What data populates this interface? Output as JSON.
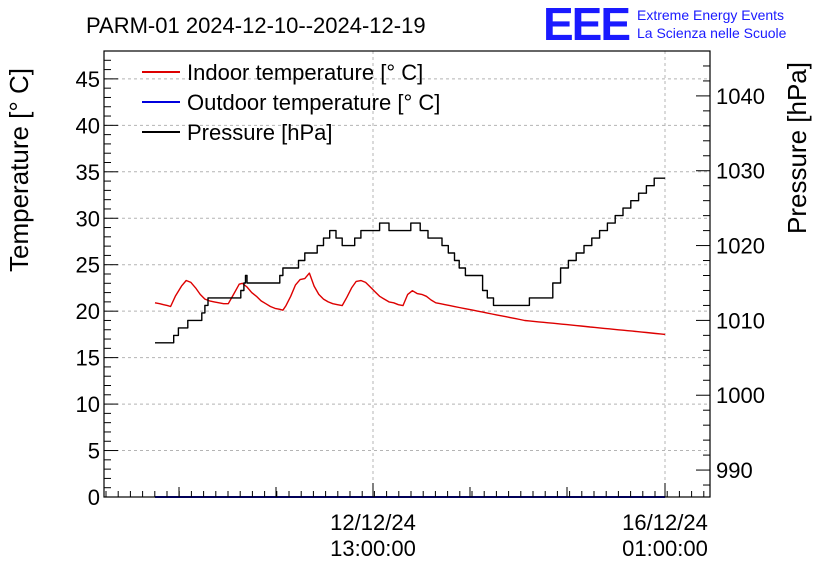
{
  "chart_data": {
    "type": "line",
    "title": "PARM-01 2024-12-10--2024-12-19",
    "ylabel": "Temperature [° C]",
    "y2label": "Pressure [hPa]",
    "ylim": [
      0,
      48
    ],
    "y2lim": [
      986.4,
      1046
    ],
    "yticks": [
      "0",
      "5",
      "10",
      "15",
      "20",
      "25",
      "30",
      "35",
      "40",
      "45"
    ],
    "y2ticks": [
      "990",
      "1000",
      "1010",
      "1020",
      "1030",
      "1040"
    ],
    "x_major_labels": [
      {
        "date": "12/12/24",
        "time": "13:00:00"
      },
      {
        "date": "16/12/24",
        "time": "01:00:00"
      }
    ],
    "legend": [
      {
        "label": "Indoor temperature [° C]",
        "color": "#dd0000"
      },
      {
        "label": "Outdoor temperature [° C]",
        "color": "#0000dd"
      },
      {
        "label": "Pressure [hPa]",
        "color": "#000000"
      }
    ],
    "series": [
      {
        "name": "Indoor temperature [° C]",
        "axis": "left",
        "color": "#dd0000",
        "x": [
          0,
          0.3,
          0.55,
          0.8,
          1.0,
          1.3,
          1.7,
          2.0,
          2.3,
          2.6,
          2.9,
          3.2,
          3.5,
          3.8,
          4.1,
          4.4,
          4.7,
          5.0,
          5.2,
          5.4,
          5.6,
          5.9,
          6.2,
          6.5,
          6.8,
          7.1,
          7.4,
          7.7,
          8.0,
          8.2,
          8.4,
          8.7,
          9.0,
          9.3,
          9.6,
          9.9,
          10.2,
          10.5,
          10.8,
          11.1,
          11.4,
          11.7,
          12.0,
          12.3,
          12.6,
          12.9,
          13.2,
          13.5,
          13.8,
          14.1,
          14.4,
          14.7,
          15.0,
          15.3,
          15.6,
          15.9,
          16.2,
          16.5,
          16.8,
          17.1,
          17.4,
          17.7,
          18.0,
          18.3,
          18.6,
          18.9,
          19.2,
          19.5,
          19.8,
          20.1,
          20.4,
          20.7,
          21.0,
          21.3,
          21.6,
          21.9,
          22.2,
          22.5,
          22.8,
          23.1,
          23.4,
          23.7,
          24.0,
          24.3,
          24.6,
          24.9,
          25.2,
          25.5,
          25.8,
          26.1,
          26.4,
          26.7,
          27.0,
          27.3,
          27.6,
          27.9,
          28.2,
          28.5,
          28.8,
          29.1,
          29.4,
          29.7,
          30.0,
          30.3,
          30.6,
          30.9,
          31.2,
          31.5,
          31.8,
          32.1,
          32.4,
          32.7
        ],
        "values": [
          20.9,
          20.8,
          20.7,
          20.6,
          20.5,
          21.6,
          22.7,
          23.3,
          23.1,
          22.5,
          21.8,
          21.3,
          21.1,
          21.0,
          20.9,
          20.8,
          20.8,
          21.7,
          22.3,
          22.9,
          23.0,
          22.6,
          22.0,
          21.6,
          21.1,
          20.8,
          20.5,
          20.3,
          20.2,
          20.1,
          20.6,
          21.6,
          22.8,
          23.4,
          23.5,
          24.1,
          22.7,
          21.8,
          21.3,
          21.0,
          20.8,
          20.7,
          20.6,
          21.5,
          22.5,
          23.2,
          23.3,
          23.1,
          22.6,
          22.1,
          21.6,
          21.3,
          21.0,
          20.9,
          20.7,
          20.6,
          21.8,
          22.2,
          21.9,
          21.8,
          21.6,
          21.2,
          20.9,
          20.8,
          20.7,
          20.6,
          20.5,
          20.4,
          20.3,
          20.2,
          20.1,
          20.0,
          19.9,
          19.8,
          19.7,
          19.6,
          19.5,
          19.4,
          19.3,
          19.2,
          19.1,
          19.0,
          18.95,
          18.9,
          18.85,
          18.8,
          18.75,
          18.7,
          18.65,
          18.6,
          18.55,
          18.5,
          18.45,
          18.4,
          18.35,
          18.3,
          18.25,
          18.2,
          18.15,
          18.1,
          18.05,
          18.0,
          17.95,
          17.9,
          17.85,
          17.8,
          17.75,
          17.7,
          17.65,
          17.6,
          17.55,
          17.5
        ]
      },
      {
        "name": "Outdoor temperature [° C]",
        "axis": "left",
        "color": "#0000dd",
        "x": [
          0,
          32.7
        ],
        "values": [
          0,
          0
        ]
      },
      {
        "name": "Pressure [hPa]",
        "axis": "right",
        "color": "#000000",
        "x": [
          0,
          1.0,
          1.2,
          1.5,
          1.8,
          2.1,
          2.4,
          3.0,
          3.2,
          3.4,
          3.6,
          5.5,
          5.7,
          5.8,
          5.9,
          6.0,
          6.2,
          8.0,
          8.2,
          9.0,
          9.2,
          9.6,
          10.0,
          10.4,
          10.8,
          11.2,
          11.6,
          12.0,
          12.4,
          12.8,
          13.2,
          13.6,
          14.0,
          14.4,
          15.0,
          15.4,
          15.8,
          16.4,
          17.0,
          17.5,
          18.0,
          18.4,
          18.8,
          19.2,
          19.5,
          19.9,
          21.0,
          21.3,
          21.7,
          23.0,
          23.6,
          24.0,
          24.5,
          25.0,
          25.5,
          26.0,
          26.5,
          27.0,
          27.5,
          28.0,
          28.5,
          29.0,
          29.5,
          30.0,
          30.5,
          31.0,
          31.5,
          32.0,
          32.7
        ],
        "values": [
          1007.0,
          1007.0,
          1008.0,
          1009.0,
          1009.0,
          1010.0,
          1010.0,
          1011.0,
          1012.0,
          1013.0,
          1013.0,
          1014.0,
          1015.0,
          1016.0,
          1015.0,
          1015.0,
          1015.0,
          1016.0,
          1017.0,
          1017.0,
          1018.0,
          1019.0,
          1019.0,
          1020.0,
          1021.0,
          1022.0,
          1021.0,
          1020.0,
          1020.0,
          1021.0,
          1022.0,
          1022.0,
          1022.0,
          1023.0,
          1022.0,
          1022.0,
          1022.0,
          1023.0,
          1022.0,
          1021.0,
          1021.0,
          1020.0,
          1019.0,
          1018.0,
          1017.0,
          1016.0,
          1014.0,
          1013.0,
          1012.0,
          1012.0,
          1012.0,
          1013.0,
          1013.0,
          1013.0,
          1015.0,
          1017.0,
          1018.0,
          1019.0,
          1020.0,
          1021.0,
          1022.0,
          1023.0,
          1024.0,
          1025.0,
          1026.0,
          1027.0,
          1028.0,
          1029.0,
          1029.0
        ]
      }
    ],
    "grid": true,
    "legend_position": "top-left"
  },
  "logo": {
    "mark": "EEE",
    "line1": "Extreme Energy Events",
    "line2": "La Scienza nelle Scuole",
    "color": "#1a1aff"
  }
}
